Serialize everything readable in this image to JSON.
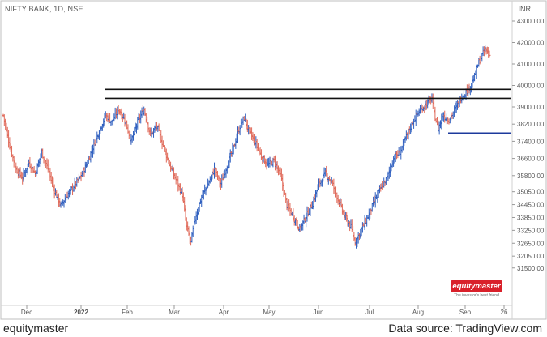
{
  "header": {
    "symbol_label": "NIFTY BANK, 1D, NSE",
    "currency": "INR"
  },
  "footer": {
    "brand": "equitymaster",
    "source": "Data source: TradingView.com"
  },
  "logo": {
    "text": "equitymaster",
    "tagline": "The investor's best friend"
  },
  "colors": {
    "up": "#2f5fbf",
    "down": "#e06a5a",
    "level_black": "#111111",
    "level_blue": "#1c3a9c",
    "logo_red": "#d9202a"
  },
  "chart_data": {
    "type": "ohlc",
    "y_ticks": [
      "43000.00",
      "42000.00",
      "41000.00",
      "40000.00",
      "39000.00",
      "38200.00",
      "37400.00",
      "36600.00",
      "35800.00",
      "35050.00",
      "34450.00",
      "33850.00",
      "33250.00",
      "32650.00",
      "32050.00",
      "31500.00"
    ],
    "x_ticks": [
      "Dec",
      "2022",
      "Feb",
      "Mar",
      "Apr",
      "May",
      "Jun",
      "Jul",
      "Aug",
      "Sep",
      "26"
    ],
    "ylim": [
      31200,
      43600
    ],
    "levels": [
      {
        "value": 39820,
        "from": "Jan 2022",
        "to": "end",
        "color": "#111111"
      },
      {
        "value": 39400,
        "from": "Jan 2022",
        "to": "end",
        "color": "#111111"
      },
      {
        "value": 37780,
        "from": "mid Aug",
        "to": "end",
        "color": "#1c3a9c"
      }
    ],
    "path": [
      [
        0,
        38600
      ],
      [
        6,
        37200
      ],
      [
        12,
        36100
      ],
      [
        18,
        35700
      ],
      [
        24,
        36400
      ],
      [
        30,
        35900
      ],
      [
        36,
        36900
      ],
      [
        42,
        36100
      ],
      [
        48,
        35100
      ],
      [
        54,
        34400
      ],
      [
        60,
        34900
      ],
      [
        66,
        35300
      ],
      [
        72,
        35700
      ],
      [
        78,
        36300
      ],
      [
        84,
        37100
      ],
      [
        90,
        37900
      ],
      [
        96,
        38600
      ],
      [
        102,
        38300
      ],
      [
        108,
        38900
      ],
      [
        114,
        38400
      ],
      [
        120,
        37400
      ],
      [
        126,
        38300
      ],
      [
        132,
        38900
      ],
      [
        138,
        37700
      ],
      [
        144,
        38100
      ],
      [
        150,
        37200
      ],
      [
        156,
        36300
      ],
      [
        162,
        35600
      ],
      [
        168,
        34900
      ],
      [
        172,
        33400
      ],
      [
        176,
        32700
      ],
      [
        180,
        33800
      ],
      [
        186,
        34800
      ],
      [
        192,
        35400
      ],
      [
        198,
        36100
      ],
      [
        204,
        35400
      ],
      [
        210,
        36300
      ],
      [
        216,
        37100
      ],
      [
        222,
        38100
      ],
      [
        226,
        38500
      ],
      [
        230,
        37900
      ],
      [
        236,
        37400
      ],
      [
        242,
        36700
      ],
      [
        248,
        36300
      ],
      [
        254,
        36500
      ],
      [
        260,
        35800
      ],
      [
        266,
        34400
      ],
      [
        272,
        33900
      ],
      [
        278,
        33300
      ],
      [
        284,
        33900
      ],
      [
        290,
        34500
      ],
      [
        296,
        35400
      ],
      [
        302,
        35900
      ],
      [
        308,
        35500
      ],
      [
        314,
        34700
      ],
      [
        320,
        33900
      ],
      [
        326,
        33400
      ],
      [
        330,
        32700
      ],
      [
        336,
        33300
      ],
      [
        342,
        33900
      ],
      [
        348,
        34600
      ],
      [
        354,
        35200
      ],
      [
        360,
        35700
      ],
      [
        366,
        36600
      ],
      [
        372,
        36900
      ],
      [
        378,
        37600
      ],
      [
        384,
        38300
      ],
      [
        390,
        38800
      ],
      [
        396,
        39100
      ],
      [
        402,
        39400
      ],
      [
        404,
        38700
      ],
      [
        408,
        38000
      ],
      [
        412,
        38600
      ],
      [
        418,
        38400
      ],
      [
        424,
        38900
      ],
      [
        430,
        39500
      ],
      [
        436,
        39800
      ],
      [
        442,
        40400
      ],
      [
        446,
        41100
      ],
      [
        452,
        41700
      ],
      [
        456,
        41400
      ]
    ]
  }
}
